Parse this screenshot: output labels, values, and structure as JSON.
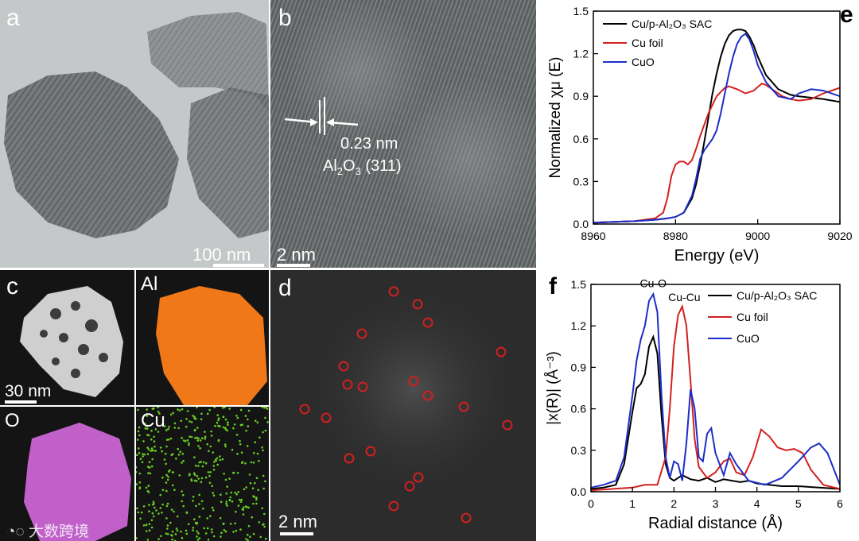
{
  "panels": {
    "a": {
      "label": "a",
      "scalebar": "100 nm"
    },
    "b": {
      "label": "b",
      "scalebar": "2 nm",
      "spacing": "0.23 nm",
      "plane_prefix": "Al",
      "plane_sub1": "2",
      "plane_mid": "O",
      "plane_sub2": "3",
      "plane_suffix": " (311)"
    },
    "c": {
      "label": "c",
      "scalebar": "30 nm",
      "maps": [
        "Al",
        "O",
        "Cu"
      ],
      "map_colors": [
        "#f07818",
        "#c060c8",
        "#68d020"
      ]
    },
    "d": {
      "label": "d",
      "scalebar": "2 nm"
    }
  },
  "watermark": "大数跨境",
  "chart_data": [
    {
      "panel": "e",
      "type": "line",
      "xlabel": "Energy (eV)",
      "ylabel": "Normalized χμ (E)",
      "xlim": [
        8960,
        9020
      ],
      "ylim": [
        0,
        1.5
      ],
      "xticks": [
        "8960",
        "8980",
        "9000",
        "9020"
      ],
      "yticks": [
        "0.0",
        "0.3",
        "0.6",
        "0.9",
        "1.2",
        "1.5"
      ],
      "legend": {
        "placement": "top-left",
        "entries": [
          "Cu/p-Al₂O₃ SAC",
          "Cu foil",
          "CuO"
        ]
      },
      "series": [
        {
          "name": "Cu/p-Al₂O₃ SAC",
          "color": "#000000",
          "x": [
            8960,
            8970,
            8975,
            8978,
            8980,
            8982,
            8984,
            8985,
            8986,
            8987,
            8988,
            8989,
            8990,
            8991,
            8992,
            8993,
            8994,
            8995,
            8996,
            8997,
            8998,
            8999,
            9000,
            9002,
            9005,
            9008,
            9010,
            9013,
            9016,
            9020
          ],
          "y": [
            0.01,
            0.02,
            0.03,
            0.04,
            0.05,
            0.08,
            0.18,
            0.28,
            0.42,
            0.58,
            0.75,
            0.92,
            1.06,
            1.18,
            1.27,
            1.33,
            1.36,
            1.37,
            1.37,
            1.36,
            1.32,
            1.26,
            1.18,
            1.05,
            0.95,
            0.91,
            0.9,
            0.89,
            0.88,
            0.86
          ]
        },
        {
          "name": "Cu foil",
          "color": "#d42020",
          "x": [
            8960,
            8970,
            8975,
            8977,
            8978,
            8979,
            8980,
            8981,
            8982,
            8983,
            8984,
            8985,
            8986,
            8988,
            8990,
            8992,
            8993,
            8995,
            8997,
            8999,
            9001,
            9002,
            9004,
            9006,
            9008,
            9010,
            9013,
            9016,
            9020
          ],
          "y": [
            0.01,
            0.02,
            0.04,
            0.08,
            0.18,
            0.34,
            0.42,
            0.44,
            0.44,
            0.42,
            0.45,
            0.53,
            0.62,
            0.78,
            0.9,
            0.96,
            0.97,
            0.95,
            0.92,
            0.94,
            0.99,
            0.98,
            0.94,
            0.9,
            0.88,
            0.87,
            0.88,
            0.92,
            0.96
          ]
        },
        {
          "name": "CuO",
          "color": "#1c2ec8",
          "x": [
            8960,
            8970,
            8975,
            8978,
            8980,
            8982,
            8984,
            8985,
            8986,
            8987,
            8988,
            8989,
            8990,
            8991,
            8992,
            8993,
            8994,
            8995,
            8996,
            8997,
            8998,
            8999,
            9000,
            9002,
            9005,
            9008,
            9010,
            9013,
            9016,
            9020
          ],
          "y": [
            0.01,
            0.02,
            0.03,
            0.04,
            0.05,
            0.08,
            0.2,
            0.32,
            0.46,
            0.52,
            0.56,
            0.6,
            0.66,
            0.78,
            0.92,
            1.06,
            1.18,
            1.27,
            1.32,
            1.34,
            1.3,
            1.22,
            1.12,
            1.0,
            0.9,
            0.88,
            0.92,
            0.95,
            0.94,
            0.9
          ]
        }
      ]
    },
    {
      "panel": "f",
      "type": "line",
      "xlabel": "Radial distance (Å)",
      "ylabel": "|x(R)| (Å⁻³)",
      "xlim": [
        0,
        6
      ],
      "ylim": [
        0,
        1.5
      ],
      "xticks": [
        "0",
        "1",
        "2",
        "3",
        "4",
        "5",
        "6"
      ],
      "yticks": [
        "0.0",
        "0.3",
        "0.6",
        "0.9",
        "1.2",
        "1.5"
      ],
      "annotations": [
        {
          "text": "Cu-O",
          "x": 1.5,
          "y": 1.48
        },
        {
          "text": "Cu-Cu",
          "x": 2.25,
          "y": 1.38
        }
      ],
      "legend": {
        "placement": "top-right",
        "entries": [
          "Cu/p-Al₂O₃ SAC",
          "Cu foil",
          "CuO"
        ]
      },
      "series": [
        {
          "name": "Cu/p-Al₂O₃ SAC",
          "color": "#000000",
          "x": [
            0,
            0.3,
            0.6,
            0.8,
            1.0,
            1.1,
            1.2,
            1.3,
            1.4,
            1.5,
            1.6,
            1.7,
            1.8,
            1.9,
            2.0,
            2.2,
            2.4,
            2.6,
            2.8,
            3.0,
            3.2,
            3.4,
            3.6,
            3.8,
            4.0,
            4.3,
            4.6,
            5.0,
            5.5,
            6.0
          ],
          "y": [
            0.02,
            0.03,
            0.05,
            0.2,
            0.58,
            0.75,
            0.78,
            0.85,
            1.05,
            1.12,
            1.0,
            0.55,
            0.2,
            0.1,
            0.08,
            0.12,
            0.09,
            0.08,
            0.1,
            0.07,
            0.09,
            0.08,
            0.07,
            0.08,
            0.06,
            0.05,
            0.04,
            0.04,
            0.03,
            0.02
          ]
        },
        {
          "name": "Cu foil",
          "color": "#d42020",
          "x": [
            0,
            0.5,
            1.0,
            1.3,
            1.6,
            1.8,
            1.9,
            2.0,
            2.1,
            2.2,
            2.3,
            2.4,
            2.5,
            2.6,
            2.8,
            3.0,
            3.2,
            3.35,
            3.5,
            3.7,
            3.9,
            4.1,
            4.3,
            4.5,
            4.7,
            4.9,
            5.1,
            5.3,
            5.6,
            6.0
          ],
          "y": [
            0.01,
            0.02,
            0.03,
            0.05,
            0.05,
            0.25,
            0.6,
            1.05,
            1.28,
            1.34,
            1.2,
            0.8,
            0.38,
            0.18,
            0.1,
            0.14,
            0.22,
            0.24,
            0.14,
            0.12,
            0.25,
            0.45,
            0.4,
            0.32,
            0.3,
            0.31,
            0.28,
            0.16,
            0.05,
            0.02
          ]
        },
        {
          "name": "CuO",
          "color": "#1c2ec8",
          "x": [
            0,
            0.3,
            0.6,
            0.8,
            1.0,
            1.1,
            1.2,
            1.3,
            1.4,
            1.5,
            1.6,
            1.7,
            1.8,
            1.9,
            2.0,
            2.1,
            2.2,
            2.3,
            2.4,
            2.5,
            2.6,
            2.7,
            2.8,
            2.9,
            3.0,
            3.2,
            3.35,
            3.5,
            3.8,
            4.2,
            4.6,
            5.0,
            5.3,
            5.5,
            5.7,
            6.0
          ],
          "y": [
            0.03,
            0.05,
            0.08,
            0.25,
            0.7,
            0.95,
            1.1,
            1.2,
            1.38,
            1.43,
            1.3,
            0.7,
            0.25,
            0.1,
            0.22,
            0.2,
            0.08,
            0.35,
            0.74,
            0.6,
            0.25,
            0.22,
            0.42,
            0.46,
            0.28,
            0.12,
            0.28,
            0.2,
            0.08,
            0.05,
            0.1,
            0.22,
            0.32,
            0.35,
            0.28,
            0.05
          ]
        }
      ]
    }
  ]
}
